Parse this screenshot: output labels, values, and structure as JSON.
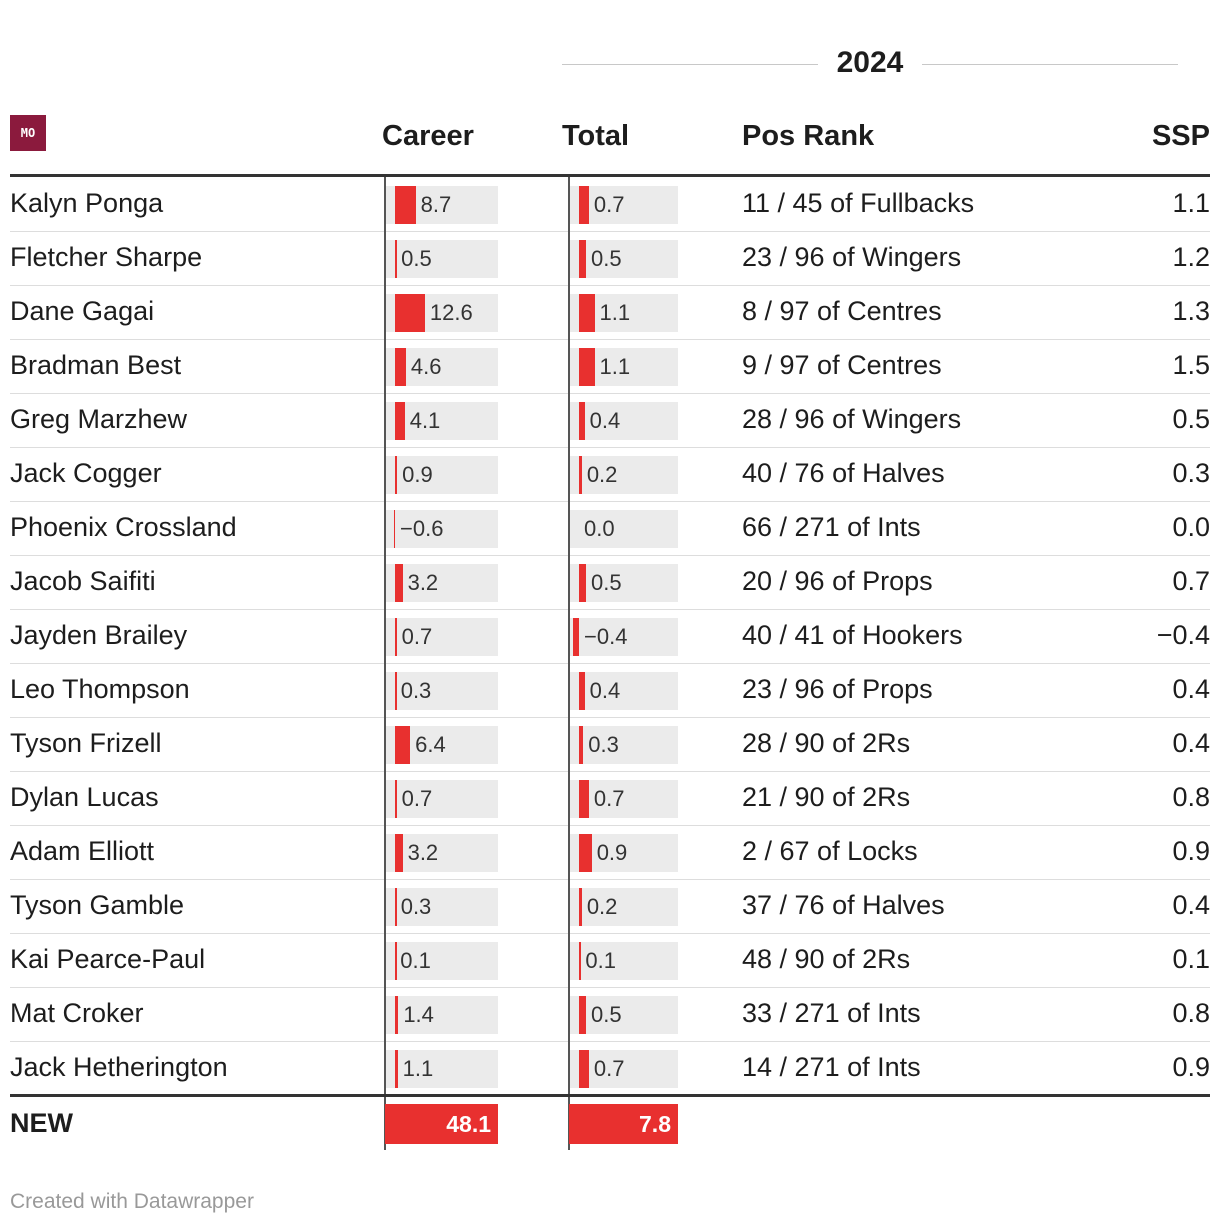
{
  "group_header": "2024",
  "logo_text": "MO",
  "columns": {
    "career": "Career",
    "total": "Total",
    "pos_rank": "Pos Rank",
    "ssp": "SSP"
  },
  "colors": {
    "bar": "#e8302f",
    "bar_bg": "#ebebeb",
    "logo_bg": "#8b1a3d"
  },
  "rows": [
    {
      "name": "Kalyn Ponga",
      "career": "8.7",
      "total": "0.7",
      "pos_rank": "11 / 45 of Fullbacks",
      "ssp": "1.1"
    },
    {
      "name": "Fletcher Sharpe",
      "career": "0.5",
      "total": "0.5",
      "pos_rank": "23 / 96 of Wingers",
      "ssp": "1.2"
    },
    {
      "name": "Dane Gagai",
      "career": "12.6",
      "total": "1.1",
      "pos_rank": "8 / 97 of Centres",
      "ssp": "1.3"
    },
    {
      "name": "Bradman Best",
      "career": "4.6",
      "total": "1.1",
      "pos_rank": "9 / 97 of Centres",
      "ssp": "1.5"
    },
    {
      "name": "Greg Marzhew",
      "career": "4.1",
      "total": "0.4",
      "pos_rank": "28 / 96 of Wingers",
      "ssp": "0.5"
    },
    {
      "name": "Jack Cogger",
      "career": "0.9",
      "total": "0.2",
      "pos_rank": "40 / 76 of Halves",
      "ssp": "0.3"
    },
    {
      "name": "Phoenix Crossland",
      "career": "−0.6",
      "total": "0.0",
      "pos_rank": "66 / 271 of Ints",
      "ssp": "0.0"
    },
    {
      "name": "Jacob Saifiti",
      "career": "3.2",
      "total": "0.5",
      "pos_rank": "20 / 96 of Props",
      "ssp": "0.7"
    },
    {
      "name": "Jayden Brailey",
      "career": "0.7",
      "total": "−0.4",
      "pos_rank": "40 / 41 of Hookers",
      "ssp": "−0.4"
    },
    {
      "name": "Leo Thompson",
      "career": "0.3",
      "total": "0.4",
      "pos_rank": "23 / 96 of Props",
      "ssp": "0.4"
    },
    {
      "name": "Tyson Frizell",
      "career": "6.4",
      "total": "0.3",
      "pos_rank": "28 / 90 of 2Rs",
      "ssp": "0.4"
    },
    {
      "name": "Dylan Lucas",
      "career": "0.7",
      "total": "0.7",
      "pos_rank": "21 / 90 of 2Rs",
      "ssp": "0.8"
    },
    {
      "name": "Adam Elliott",
      "career": "3.2",
      "total": "0.9",
      "pos_rank": "2 / 67 of Locks",
      "ssp": "0.9"
    },
    {
      "name": "Tyson Gamble",
      "career": "0.3",
      "total": "0.2",
      "pos_rank": "37 / 76 of Halves",
      "ssp": "0.4"
    },
    {
      "name": "Kai Pearce-Paul",
      "career": "0.1",
      "total": "0.1",
      "pos_rank": "48 / 90 of 2Rs",
      "ssp": "0.1"
    },
    {
      "name": "Mat Croker",
      "career": "1.4",
      "total": "0.5",
      "pos_rank": "33 / 271 of Ints",
      "ssp": "0.8"
    },
    {
      "name": "Jack Hetherington",
      "career": "1.1",
      "total": "0.7",
      "pos_rank": "14 / 271 of Ints",
      "ssp": "0.9"
    }
  ],
  "totals": {
    "label": "NEW",
    "career": "48.1",
    "total": "7.8"
  },
  "credit": "Created with Datawrapper",
  "chart_data": {
    "type": "table",
    "columns": [
      "Career",
      "Total",
      "Pos Rank",
      "SSP"
    ],
    "career_max": 48.1,
    "total_max": 7.8
  }
}
